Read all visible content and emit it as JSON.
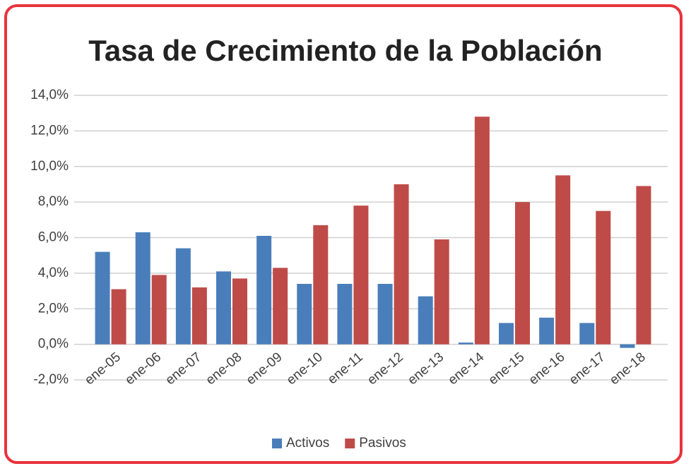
{
  "chart_data": {
    "type": "bar",
    "title": "Tasa de Crecimiento de la Población",
    "categories": [
      "ene-05",
      "ene-06",
      "ene-07",
      "ene-08",
      "ene-09",
      "ene-10",
      "ene-11",
      "ene-12",
      "ene-13",
      "ene-14",
      "ene-15",
      "ene-16",
      "ene-17",
      "ene-18"
    ],
    "series": [
      {
        "name": "Activos",
        "color": "#4a7ebb",
        "values": [
          5.2,
          6.3,
          5.4,
          4.1,
          6.1,
          3.4,
          3.4,
          3.4,
          2.7,
          0.1,
          1.2,
          1.5,
          1.2,
          -0.2
        ]
      },
      {
        "name": "Pasivos",
        "color": "#be4b48",
        "values": [
          3.1,
          3.9,
          3.2,
          3.7,
          4.3,
          6.7,
          7.8,
          9.0,
          5.9,
          12.8,
          8.0,
          9.5,
          7.5,
          8.9
        ]
      }
    ],
    "ylim": [
      -2,
      14
    ],
    "yticks": [
      {
        "value": -2,
        "label": "-2,0%"
      },
      {
        "value": 0,
        "label": "0,0%"
      },
      {
        "value": 2,
        "label": "2,0%"
      },
      {
        "value": 4,
        "label": "4,0%"
      },
      {
        "value": 6,
        "label": "6,0%"
      },
      {
        "value": 8,
        "label": "8,0%"
      },
      {
        "value": 10,
        "label": "10,0%"
      },
      {
        "value": 12,
        "label": "12,0%"
      },
      {
        "value": 14,
        "label": "14,0%"
      }
    ],
    "grid": true,
    "legend": "bottom"
  }
}
